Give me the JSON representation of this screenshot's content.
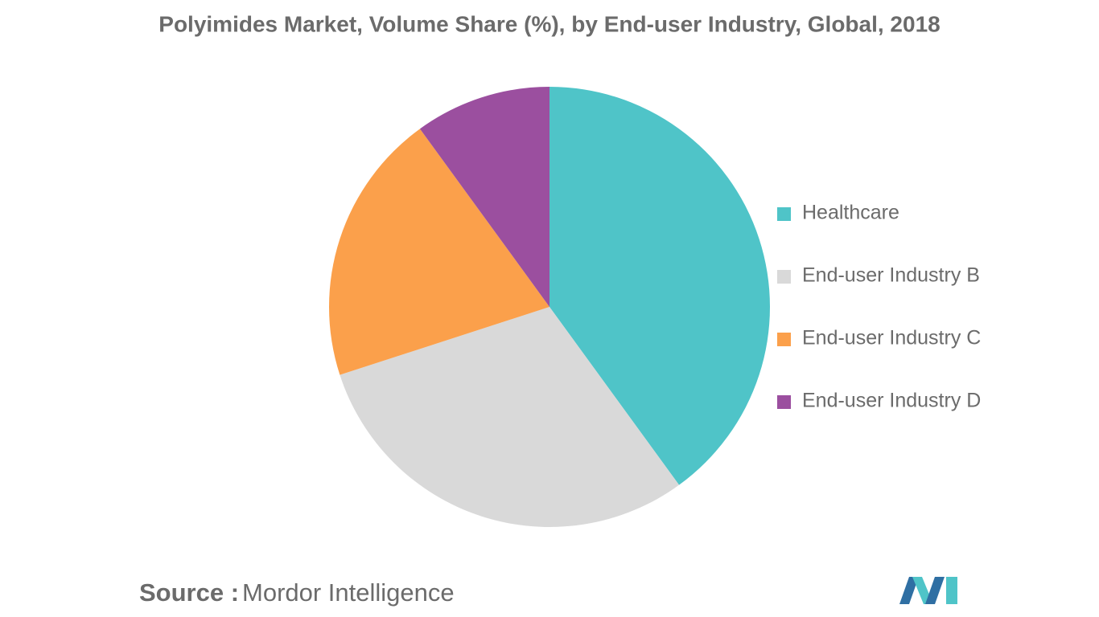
{
  "chart_data": {
    "type": "pie",
    "title": "Polyimides Market, Volume Share (%), by End-user Industry, Global, 2018",
    "categories": [
      "Healthcare",
      "End-user Industry B",
      "End-user Industry C",
      "End-user Industry D"
    ],
    "values": [
      40,
      30,
      20,
      10
    ],
    "colors": [
      "#4fc4c8",
      "#d9d9d9",
      "#fba04b",
      "#9b4f9f"
    ],
    "legend": "right"
  },
  "footer": {
    "source_label": "Source :",
    "source": "Mordor Intelligence"
  }
}
